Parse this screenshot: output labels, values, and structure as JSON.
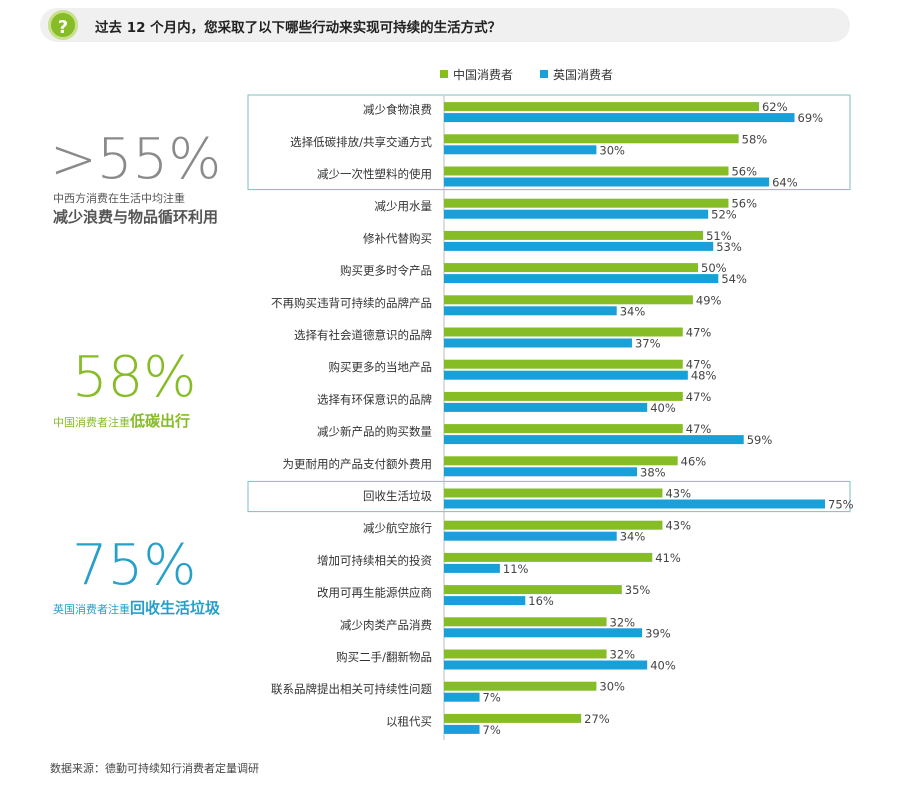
{
  "question": {
    "icon": "question-icon",
    "icon_glyph": "?",
    "text": "过去 12 个月内，您采取了以下哪些行动来实现可持续的生活方式？"
  },
  "colors": {
    "china": "#86bc25",
    "uk": "#1aa0d8",
    "gray": "#8a8a8a",
    "dark": "#555555",
    "teal": "#26a0c8"
  },
  "left_panel": {
    "stat1": {
      "value": ">55%",
      "sub": "中西方消费在生活中均注重",
      "strong": "减少浪费与物品循环利用"
    },
    "stat2": {
      "value": "58%",
      "sub": "中国消费者注重",
      "strong": "低碳出行"
    },
    "stat3": {
      "value": "75%",
      "sub": "英国消费者注重",
      "strong": "回收生活垃圾"
    }
  },
  "source": "数据来源：德勤可持续知行消费者定量调研",
  "chart_data": {
    "type": "bar",
    "orientation": "horizontal",
    "legend": [
      "中国消费者",
      "英国消费者"
    ],
    "legend_position": "top",
    "categories": [
      "减少食物浪费",
      "选择低碳排放/共享交通方式",
      "减少一次性塑料的使用",
      "减少用水量",
      "修补代替购买",
      "购买更多时令产品",
      "不再购买违背可持续的品牌产品",
      "选择有社会道德意识的品牌",
      "购买更多的当地产品",
      "选择有环保意识的品牌",
      "减少新产品的购买数量",
      "为更耐用的产品支付额外费用",
      "回收生活垃圾",
      "减少航空旅行",
      "增加可持续相关的投资",
      "改用可再生能源供应商",
      "减少肉类产品消费",
      "购买二手/翻新物品",
      "联系品牌提出相关可持续性问题",
      "以租代买"
    ],
    "series": [
      {
        "name": "中国消费者",
        "values": [
          62,
          58,
          56,
          56,
          51,
          50,
          49,
          47,
          47,
          47,
          47,
          46,
          43,
          43,
          41,
          35,
          32,
          32,
          30,
          27
        ]
      },
      {
        "name": "英国消费者",
        "values": [
          69,
          30,
          64,
          52,
          53,
          54,
          34,
          37,
          48,
          40,
          59,
          38,
          75,
          34,
          11,
          16,
          39,
          40,
          7,
          7
        ]
      }
    ],
    "value_suffix": "%",
    "xlim": [
      0,
      100
    ],
    "highlight_groups": [
      [
        0,
        2
      ],
      [
        12,
        12
      ]
    ]
  }
}
